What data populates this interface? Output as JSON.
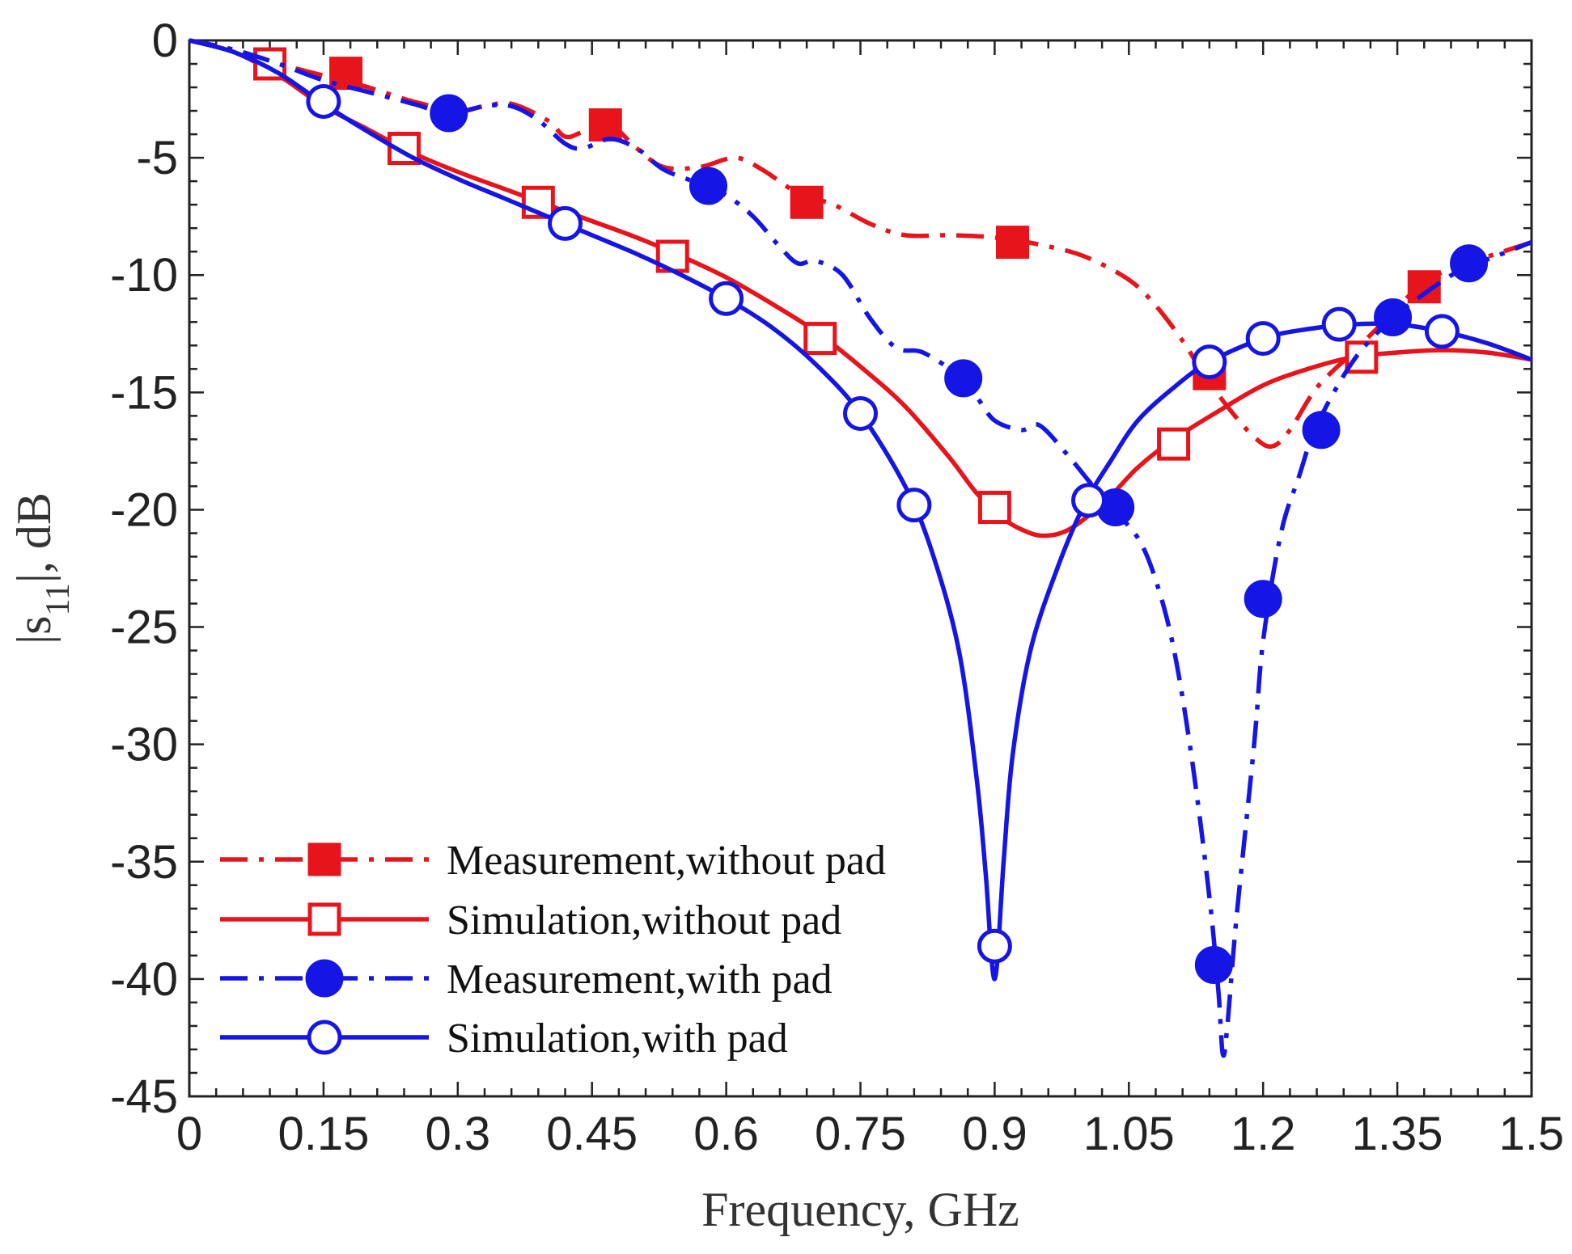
{
  "chart_data": {
    "type": "line",
    "title": "",
    "xlabel": "Frequency, GHz",
    "ylabel": "|s11|, dB",
    "ylabel_main": "|s",
    "ylabel_sub": "11",
    "ylabel_rest": "|, dB",
    "xlim": [
      0,
      1.5
    ],
    "ylim": [
      -45,
      0
    ],
    "xticks": [
      0,
      0.15,
      0.3,
      0.45,
      0.6,
      0.75,
      0.9,
      1.05,
      1.2,
      1.35,
      1.5
    ],
    "xtick_labels": [
      "0",
      "0.15",
      "0.3",
      "0.45",
      "0.6",
      "0.75",
      "0.9",
      "1.05",
      "1.2",
      "1.35",
      "1.5"
    ],
    "yticks": [
      0,
      -5,
      -10,
      -15,
      -20,
      -25,
      -30,
      -35,
      -40,
      -45
    ],
    "ytick_labels": [
      "0",
      "-5",
      "-10",
      "-15",
      "-20",
      "-25",
      "-30",
      "-35",
      "-40",
      "-45"
    ],
    "grid": false,
    "legend_position": "bottom-left",
    "series": [
      {
        "name": "Measurement,without pad",
        "color": "#e8141c",
        "linestyle": "dashdot",
        "marker": "square-filled",
        "curve": [
          [
            0,
            0
          ],
          [
            0.05,
            -0.4
          ],
          [
            0.1,
            -1.0
          ],
          [
            0.15,
            -1.5
          ],
          [
            0.2,
            -2.0
          ],
          [
            0.25,
            -2.6
          ],
          [
            0.3,
            -3.0
          ],
          [
            0.33,
            -2.8
          ],
          [
            0.36,
            -2.7
          ],
          [
            0.4,
            -3.4
          ],
          [
            0.42,
            -4.1
          ],
          [
            0.44,
            -3.9
          ],
          [
            0.47,
            -3.6
          ],
          [
            0.5,
            -4.6
          ],
          [
            0.53,
            -5.4
          ],
          [
            0.57,
            -5.4
          ],
          [
            0.61,
            -5.0
          ],
          [
            0.64,
            -5.5
          ],
          [
            0.68,
            -6.5
          ],
          [
            0.72,
            -7.0
          ],
          [
            0.76,
            -7.8
          ],
          [
            0.8,
            -8.3
          ],
          [
            0.85,
            -8.3
          ],
          [
            0.9,
            -8.4
          ],
          [
            0.95,
            -8.7
          ],
          [
            1.0,
            -9.2
          ],
          [
            1.05,
            -10.2
          ],
          [
            1.08,
            -11.3
          ],
          [
            1.11,
            -12.8
          ],
          [
            1.13,
            -14.0
          ],
          [
            1.16,
            -15.6
          ],
          [
            1.19,
            -16.9
          ],
          [
            1.21,
            -17.3
          ],
          [
            1.23,
            -16.6
          ],
          [
            1.26,
            -14.8
          ],
          [
            1.3,
            -13.3
          ],
          [
            1.34,
            -11.8
          ],
          [
            1.38,
            -10.3
          ],
          [
            1.42,
            -9.6
          ],
          [
            1.46,
            -9.1
          ],
          [
            1.5,
            -8.6
          ]
        ],
        "markers": [
          [
            0.175,
            -1.4
          ],
          [
            0.465,
            -3.6
          ],
          [
            0.69,
            -6.9
          ],
          [
            0.92,
            -8.6
          ],
          [
            1.14,
            -14.2
          ],
          [
            1.38,
            -10.5
          ]
        ]
      },
      {
        "name": "Simulation,without pad",
        "color": "#e8141c",
        "linestyle": "solid",
        "marker": "square-open",
        "curve": [
          [
            0,
            0
          ],
          [
            0.05,
            -0.5
          ],
          [
            0.1,
            -1.5
          ],
          [
            0.15,
            -2.8
          ],
          [
            0.2,
            -3.8
          ],
          [
            0.25,
            -4.8
          ],
          [
            0.3,
            -5.6
          ],
          [
            0.35,
            -6.3
          ],
          [
            0.4,
            -7.0
          ],
          [
            0.45,
            -7.7
          ],
          [
            0.5,
            -8.4
          ],
          [
            0.55,
            -9.2
          ],
          [
            0.6,
            -10.1
          ],
          [
            0.65,
            -11.2
          ],
          [
            0.7,
            -12.4
          ],
          [
            0.75,
            -13.9
          ],
          [
            0.8,
            -15.6
          ],
          [
            0.85,
            -17.8
          ],
          [
            0.88,
            -19.3
          ],
          [
            0.91,
            -20.4
          ],
          [
            0.94,
            -21.0
          ],
          [
            0.96,
            -21.1
          ],
          [
            0.98,
            -20.9
          ],
          [
            1.0,
            -20.4
          ],
          [
            1.03,
            -19.4
          ],
          [
            1.06,
            -18.2
          ],
          [
            1.1,
            -17.0
          ],
          [
            1.15,
            -15.8
          ],
          [
            1.2,
            -14.7
          ],
          [
            1.25,
            -14.0
          ],
          [
            1.3,
            -13.5
          ],
          [
            1.35,
            -13.3
          ],
          [
            1.4,
            -13.2
          ],
          [
            1.45,
            -13.3
          ],
          [
            1.5,
            -13.6
          ]
        ],
        "markers": [
          [
            0.09,
            -1.0
          ],
          [
            0.24,
            -4.6
          ],
          [
            0.39,
            -6.9
          ],
          [
            0.54,
            -9.2
          ],
          [
            0.705,
            -12.7
          ],
          [
            0.9,
            -19.9
          ],
          [
            1.1,
            -17.2
          ],
          [
            1.31,
            -13.5
          ]
        ]
      },
      {
        "name": "Measurement,with pad",
        "color": "#1515e6",
        "linestyle": "dashdot",
        "marker": "circle-filled",
        "curve": [
          [
            0,
            0
          ],
          [
            0.05,
            -0.4
          ],
          [
            0.1,
            -1.0
          ],
          [
            0.15,
            -1.7
          ],
          [
            0.2,
            -2.2
          ],
          [
            0.25,
            -2.7
          ],
          [
            0.29,
            -3.1
          ],
          [
            0.33,
            -2.8
          ],
          [
            0.36,
            -2.8
          ],
          [
            0.39,
            -3.4
          ],
          [
            0.42,
            -4.4
          ],
          [
            0.44,
            -4.6
          ],
          [
            0.47,
            -4.2
          ],
          [
            0.5,
            -4.6
          ],
          [
            0.53,
            -5.5
          ],
          [
            0.57,
            -6.1
          ],
          [
            0.6,
            -6.6
          ],
          [
            0.63,
            -7.5
          ],
          [
            0.66,
            -8.8
          ],
          [
            0.68,
            -9.5
          ],
          [
            0.7,
            -9.4
          ],
          [
            0.73,
            -10.0
          ],
          [
            0.76,
            -11.8
          ],
          [
            0.79,
            -13.1
          ],
          [
            0.82,
            -13.3
          ],
          [
            0.86,
            -14.3
          ],
          [
            0.88,
            -15.2
          ],
          [
            0.9,
            -16.2
          ],
          [
            0.93,
            -16.6
          ],
          [
            0.95,
            -16.4
          ],
          [
            0.98,
            -17.6
          ],
          [
            1.01,
            -19.0
          ],
          [
            1.03,
            -19.9
          ],
          [
            1.06,
            -21.2
          ],
          [
            1.08,
            -23.0
          ],
          [
            1.1,
            -25.9
          ],
          [
            1.12,
            -30.5
          ],
          [
            1.14,
            -36.5
          ],
          [
            1.15,
            -40.5
          ],
          [
            1.155,
            -43.2
          ],
          [
            1.16,
            -42.0
          ],
          [
            1.17,
            -37.5
          ],
          [
            1.19,
            -30.0
          ],
          [
            1.2,
            -25.6
          ],
          [
            1.22,
            -21.0
          ],
          [
            1.24,
            -18.6
          ],
          [
            1.26,
            -16.4
          ],
          [
            1.3,
            -13.7
          ],
          [
            1.34,
            -12.0
          ],
          [
            1.38,
            -10.8
          ],
          [
            1.42,
            -9.8
          ],
          [
            1.46,
            -9.2
          ],
          [
            1.5,
            -8.6
          ]
        ],
        "markers": [
          [
            0.29,
            -3.1
          ],
          [
            0.58,
            -6.2
          ],
          [
            0.865,
            -14.4
          ],
          [
            1.035,
            -19.9
          ],
          [
            1.145,
            -39.4
          ],
          [
            1.2,
            -23.8
          ],
          [
            1.265,
            -16.6
          ],
          [
            1.345,
            -11.8
          ],
          [
            1.43,
            -9.5
          ]
        ]
      },
      {
        "name": "Simulation,with pad",
        "color": "#1515e6",
        "linestyle": "solid",
        "marker": "circle-open",
        "curve": [
          [
            0,
            0
          ],
          [
            0.05,
            -0.5
          ],
          [
            0.1,
            -1.4
          ],
          [
            0.15,
            -2.7
          ],
          [
            0.2,
            -3.9
          ],
          [
            0.25,
            -5.0
          ],
          [
            0.3,
            -5.9
          ],
          [
            0.35,
            -6.7
          ],
          [
            0.4,
            -7.5
          ],
          [
            0.45,
            -8.3
          ],
          [
            0.5,
            -9.1
          ],
          [
            0.55,
            -10.0
          ],
          [
            0.6,
            -11.0
          ],
          [
            0.65,
            -12.2
          ],
          [
            0.7,
            -13.8
          ],
          [
            0.75,
            -15.9
          ],
          [
            0.8,
            -19.0
          ],
          [
            0.83,
            -21.8
          ],
          [
            0.86,
            -26.0
          ],
          [
            0.88,
            -31.5
          ],
          [
            0.89,
            -35.5
          ],
          [
            0.9,
            -40.0
          ],
          [
            0.91,
            -35.0
          ],
          [
            0.92,
            -30.5
          ],
          [
            0.94,
            -26.0
          ],
          [
            0.97,
            -22.5
          ],
          [
            1.0,
            -19.8
          ],
          [
            1.03,
            -17.9
          ],
          [
            1.06,
            -16.2
          ],
          [
            1.1,
            -14.8
          ],
          [
            1.14,
            -13.7
          ],
          [
            1.2,
            -12.7
          ],
          [
            1.25,
            -12.3
          ],
          [
            1.3,
            -12.1
          ],
          [
            1.35,
            -12.1
          ],
          [
            1.4,
            -12.4
          ],
          [
            1.45,
            -12.9
          ],
          [
            1.5,
            -13.6
          ]
        ],
        "markers": [
          [
            0.15,
            -2.6
          ],
          [
            0.42,
            -7.8
          ],
          [
            0.6,
            -11.0
          ],
          [
            0.75,
            -15.9
          ],
          [
            0.81,
            -19.8
          ],
          [
            0.9,
            -38.6
          ],
          [
            1.005,
            -19.6
          ],
          [
            1.14,
            -13.7
          ],
          [
            1.2,
            -12.7
          ],
          [
            1.285,
            -12.1
          ],
          [
            1.4,
            -12.4
          ]
        ]
      }
    ]
  }
}
